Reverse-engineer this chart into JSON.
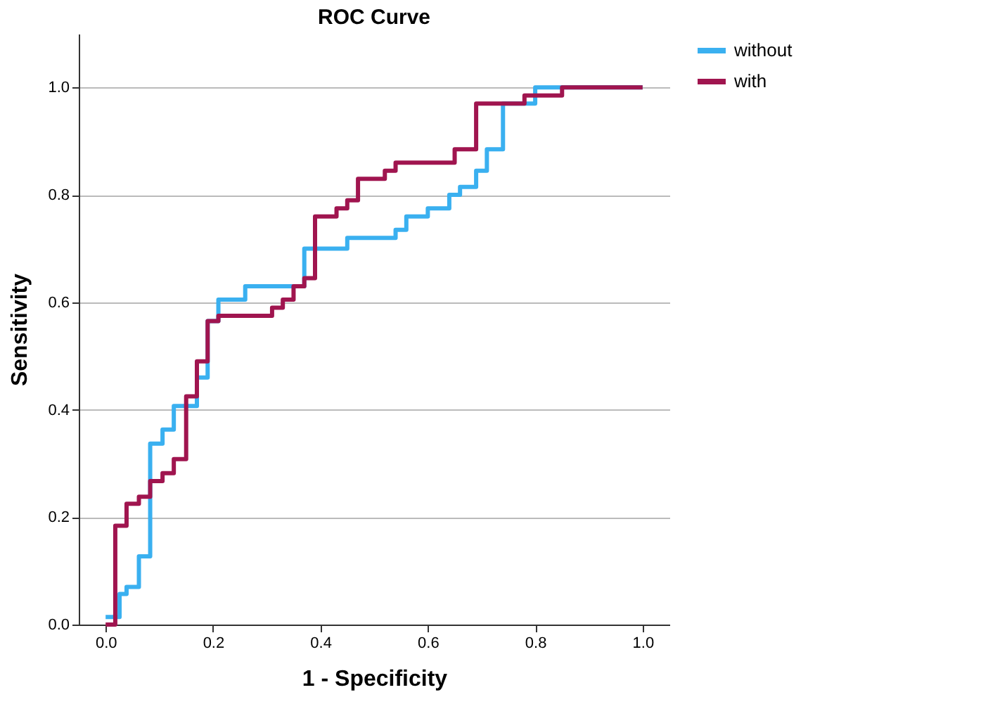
{
  "chart_data": {
    "type": "step",
    "title": "ROC Curve",
    "xlabel": "1 - Specificity",
    "ylabel": "Sensitivity",
    "xlim": [
      -0.05,
      1.05
    ],
    "ylim": [
      0,
      1.1
    ],
    "xticks": [
      {
        "value": 0,
        "label": "0.0"
      },
      0.2,
      0.4,
      0.6,
      0.8,
      {
        "value": 1,
        "label": "1.0"
      }
    ],
    "yticks": [
      {
        "value": 0,
        "label": "0.0"
      },
      0.2,
      0.4,
      0.6,
      0.8,
      {
        "value": 1,
        "label": "1.0"
      }
    ],
    "grid": "y",
    "legend": "top right",
    "line_style": "solid",
    "marker": "none",
    "series": [
      {
        "name": "without",
        "color": "#3ab0f0",
        "x": [
          0,
          0.026,
          0.039,
          0.062,
          0.083,
          0.106,
          0.127,
          0.17,
          0.19,
          0.21,
          0.26,
          0.37,
          0.45,
          0.54,
          0.56,
          0.6,
          0.64,
          0.66,
          0.69,
          0.71,
          0.74,
          0.8,
          1.0
        ],
        "values": [
          0.014,
          0.057,
          0.07,
          0.127,
          0.337,
          0.363,
          0.407,
          0.46,
          0.565,
          0.605,
          0.63,
          0.7,
          0.72,
          0.735,
          0.76,
          0.775,
          0.8,
          0.815,
          0.845,
          0.885,
          0.97,
          1.0,
          1.0
        ]
      },
      {
        "name": "with",
        "color": "#a0154f",
        "x": [
          0,
          0.018,
          0.039,
          0.062,
          0.083,
          0.106,
          0.127,
          0.15,
          0.17,
          0.19,
          0.21,
          0.31,
          0.33,
          0.35,
          0.37,
          0.39,
          0.43,
          0.45,
          0.47,
          0.52,
          0.54,
          0.65,
          0.69,
          0.78,
          0.85,
          1.0
        ],
        "values": [
          0,
          0.184,
          0.225,
          0.238,
          0.267,
          0.282,
          0.308,
          0.425,
          0.49,
          0.565,
          0.575,
          0.59,
          0.605,
          0.63,
          0.645,
          0.76,
          0.775,
          0.79,
          0.83,
          0.845,
          0.86,
          0.885,
          0.97,
          0.985,
          1.0,
          1.0
        ]
      }
    ]
  }
}
